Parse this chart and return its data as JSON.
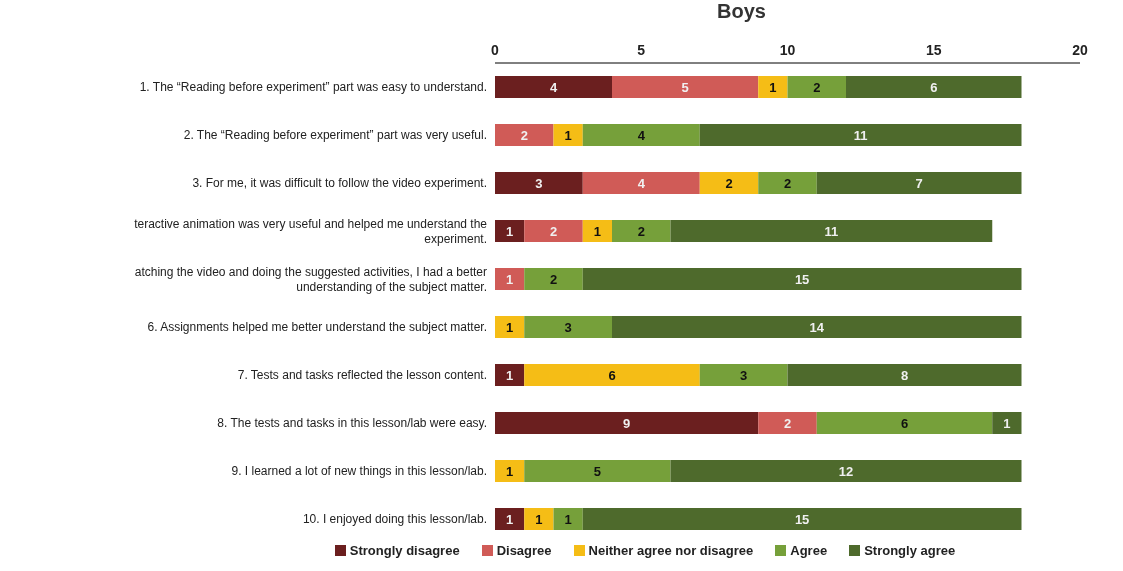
{
  "chart_data": {
    "type": "bar",
    "orientation": "horizontal",
    "stacked": true,
    "title": "Boys",
    "categories": [
      "1. The “Reading before experiment” part was easy to understand.",
      "2. The “Reading before experiment” part was very useful.",
      "3. For me, it was difficult to follow the video experiment.",
      "teractive animation was very useful and helped me understand the experiment.",
      "atching the video and doing the suggested activities, I had a better understanding of the subject matter.",
      "6. Assignments helped me better understand the subject matter.",
      "7. Tests and tasks reflected the lesson content.",
      "8. The tests and tasks in this lesson/lab were easy.",
      "9. I learned a lot of new things in this lesson/lab.",
      "10. I enjoyed doing this lesson/lab."
    ],
    "series": [
      {
        "name": "Strongly disagree",
        "color": "#6b1f1f",
        "values": [
          4,
          0,
          3,
          1,
          0,
          0,
          1,
          9,
          0,
          1
        ],
        "value_labels": [
          "4",
          null,
          "3",
          "1",
          null,
          null,
          "1",
          "9",
          null,
          "1"
        ]
      },
      {
        "name": "Disagree",
        "color": "#d05b57",
        "values": [
          5,
          2,
          4,
          2,
          1,
          0,
          0,
          2,
          0,
          0
        ],
        "value_labels": [
          "5",
          "2",
          "4",
          "2",
          "1",
          null,
          null,
          "2",
          null,
          null
        ]
      },
      {
        "name": "Neither agree nor disagree",
        "color": "#f5bd16",
        "values": [
          1,
          1,
          2,
          1,
          0,
          1,
          6,
          0,
          1,
          1
        ],
        "value_labels": [
          "1",
          "1",
          "2",
          "1",
          null,
          "1",
          "6",
          null,
          "1",
          "1"
        ]
      },
      {
        "name": "Agree",
        "color": "#76a03a",
        "values": [
          2,
          4,
          2,
          2,
          2,
          3,
          3,
          6,
          5,
          1
        ],
        "value_labels": [
          "2",
          "4",
          "2",
          "2",
          "2",
          "3",
          "3",
          "6",
          "5",
          "1"
        ]
      },
      {
        "name": "Strongly agree",
        "color": "#4e6a2c",
        "values": [
          6,
          11,
          7,
          11,
          15,
          14,
          8,
          1,
          12,
          15
        ],
        "value_labels": [
          "6",
          "11",
          "7",
          "11",
          "15",
          "14",
          "8",
          "1",
          "12",
          "15"
        ]
      }
    ],
    "xlim": [
      0,
      20
    ],
    "xticks": [
      0,
      5,
      10,
      15,
      20
    ],
    "grid": false,
    "legend": "bottom"
  }
}
